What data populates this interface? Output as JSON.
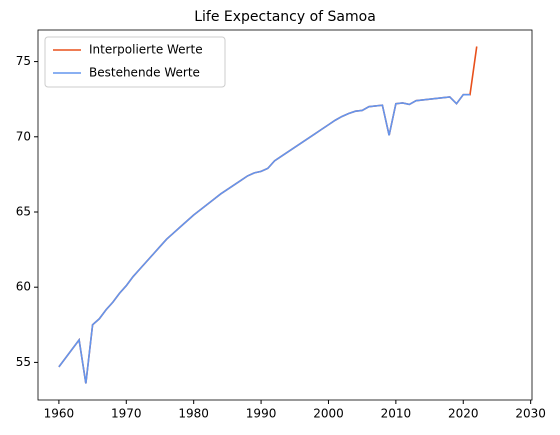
{
  "chart_data": {
    "type": "line",
    "title": "Life Expectancy of Samoa",
    "x": [
      1960,
      1961,
      1962,
      1963,
      1964,
      1965,
      1966,
      1967,
      1968,
      1969,
      1970,
      1971,
      1972,
      1973,
      1974,
      1975,
      1976,
      1977,
      1978,
      1979,
      1980,
      1981,
      1982,
      1983,
      1984,
      1985,
      1986,
      1987,
      1988,
      1989,
      1990,
      1991,
      1992,
      1993,
      1994,
      1995,
      1996,
      1997,
      1998,
      1999,
      2000,
      2001,
      2002,
      2003,
      2004,
      2005,
      2006,
      2007,
      2008,
      2009,
      2010,
      2011,
      2012,
      2013,
      2014,
      2015,
      2016,
      2017,
      2018,
      2019,
      2020,
      2021,
      2022
    ],
    "series": [
      {
        "name": "Interpolierte Werte",
        "color": "#e8501c",
        "values": [
          54.7,
          55.3,
          55.9,
          56.5,
          53.6,
          57.5,
          57.9,
          58.5,
          59.0,
          59.6,
          60.1,
          60.7,
          61.2,
          61.7,
          62.2,
          62.7,
          63.2,
          63.6,
          64.0,
          64.4,
          64.8,
          65.15,
          65.5,
          65.85,
          66.2,
          66.5,
          66.8,
          67.1,
          67.4,
          67.6,
          67.7,
          67.9,
          68.4,
          68.7,
          69.0,
          69.3,
          69.6,
          69.9,
          70.2,
          70.5,
          70.8,
          71.1,
          71.35,
          71.55,
          71.7,
          71.75,
          72.0,
          72.05,
          72.1,
          70.1,
          72.2,
          72.25,
          72.15,
          72.4,
          72.45,
          72.5,
          72.55,
          72.6,
          72.65,
          72.2,
          72.8,
          72.8,
          76.0
        ]
      },
      {
        "name": "Bestehende Werte",
        "color": "#6495ed",
        "values": [
          54.7,
          55.3,
          55.9,
          56.5,
          53.6,
          57.5,
          57.9,
          58.5,
          59.0,
          59.6,
          60.1,
          60.7,
          61.2,
          61.7,
          62.2,
          62.7,
          63.2,
          63.6,
          64.0,
          64.4,
          64.8,
          65.15,
          65.5,
          65.85,
          66.2,
          66.5,
          66.8,
          67.1,
          67.4,
          67.6,
          67.7,
          67.9,
          68.4,
          68.7,
          69.0,
          69.3,
          69.6,
          69.9,
          70.2,
          70.5,
          70.8,
          71.1,
          71.35,
          71.55,
          71.7,
          71.75,
          72.0,
          72.05,
          72.1,
          70.1,
          72.2,
          72.25,
          72.15,
          72.4,
          72.45,
          72.5,
          72.55,
          72.6,
          72.65,
          72.2,
          72.8,
          72.8,
          null
        ]
      }
    ],
    "xlim": [
      1956.9,
      2030.2
    ],
    "xticks": [
      1960,
      1970,
      1980,
      1990,
      2000,
      2010,
      2020,
      2030
    ],
    "ylim": [
      52.5,
      77.1
    ],
    "yticks": [
      55,
      60,
      65,
      70,
      75
    ],
    "legend": "upper left",
    "grid": false
  }
}
